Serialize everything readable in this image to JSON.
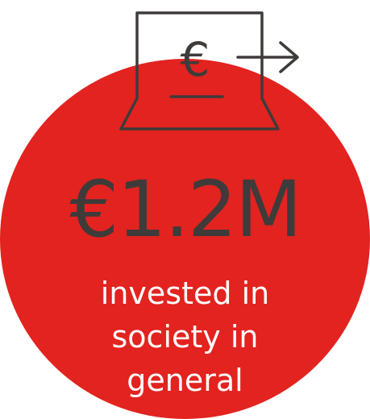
{
  "graphic": {
    "circle_color": "#e2231f",
    "icon_color": "#3e3b3a",
    "icon_name": "wallet-euro-transfer-icon",
    "icon_glyph": "€"
  },
  "amount": "€1.2M",
  "caption": {
    "line1": "invested in",
    "line2": "society in",
    "line3": "general"
  }
}
